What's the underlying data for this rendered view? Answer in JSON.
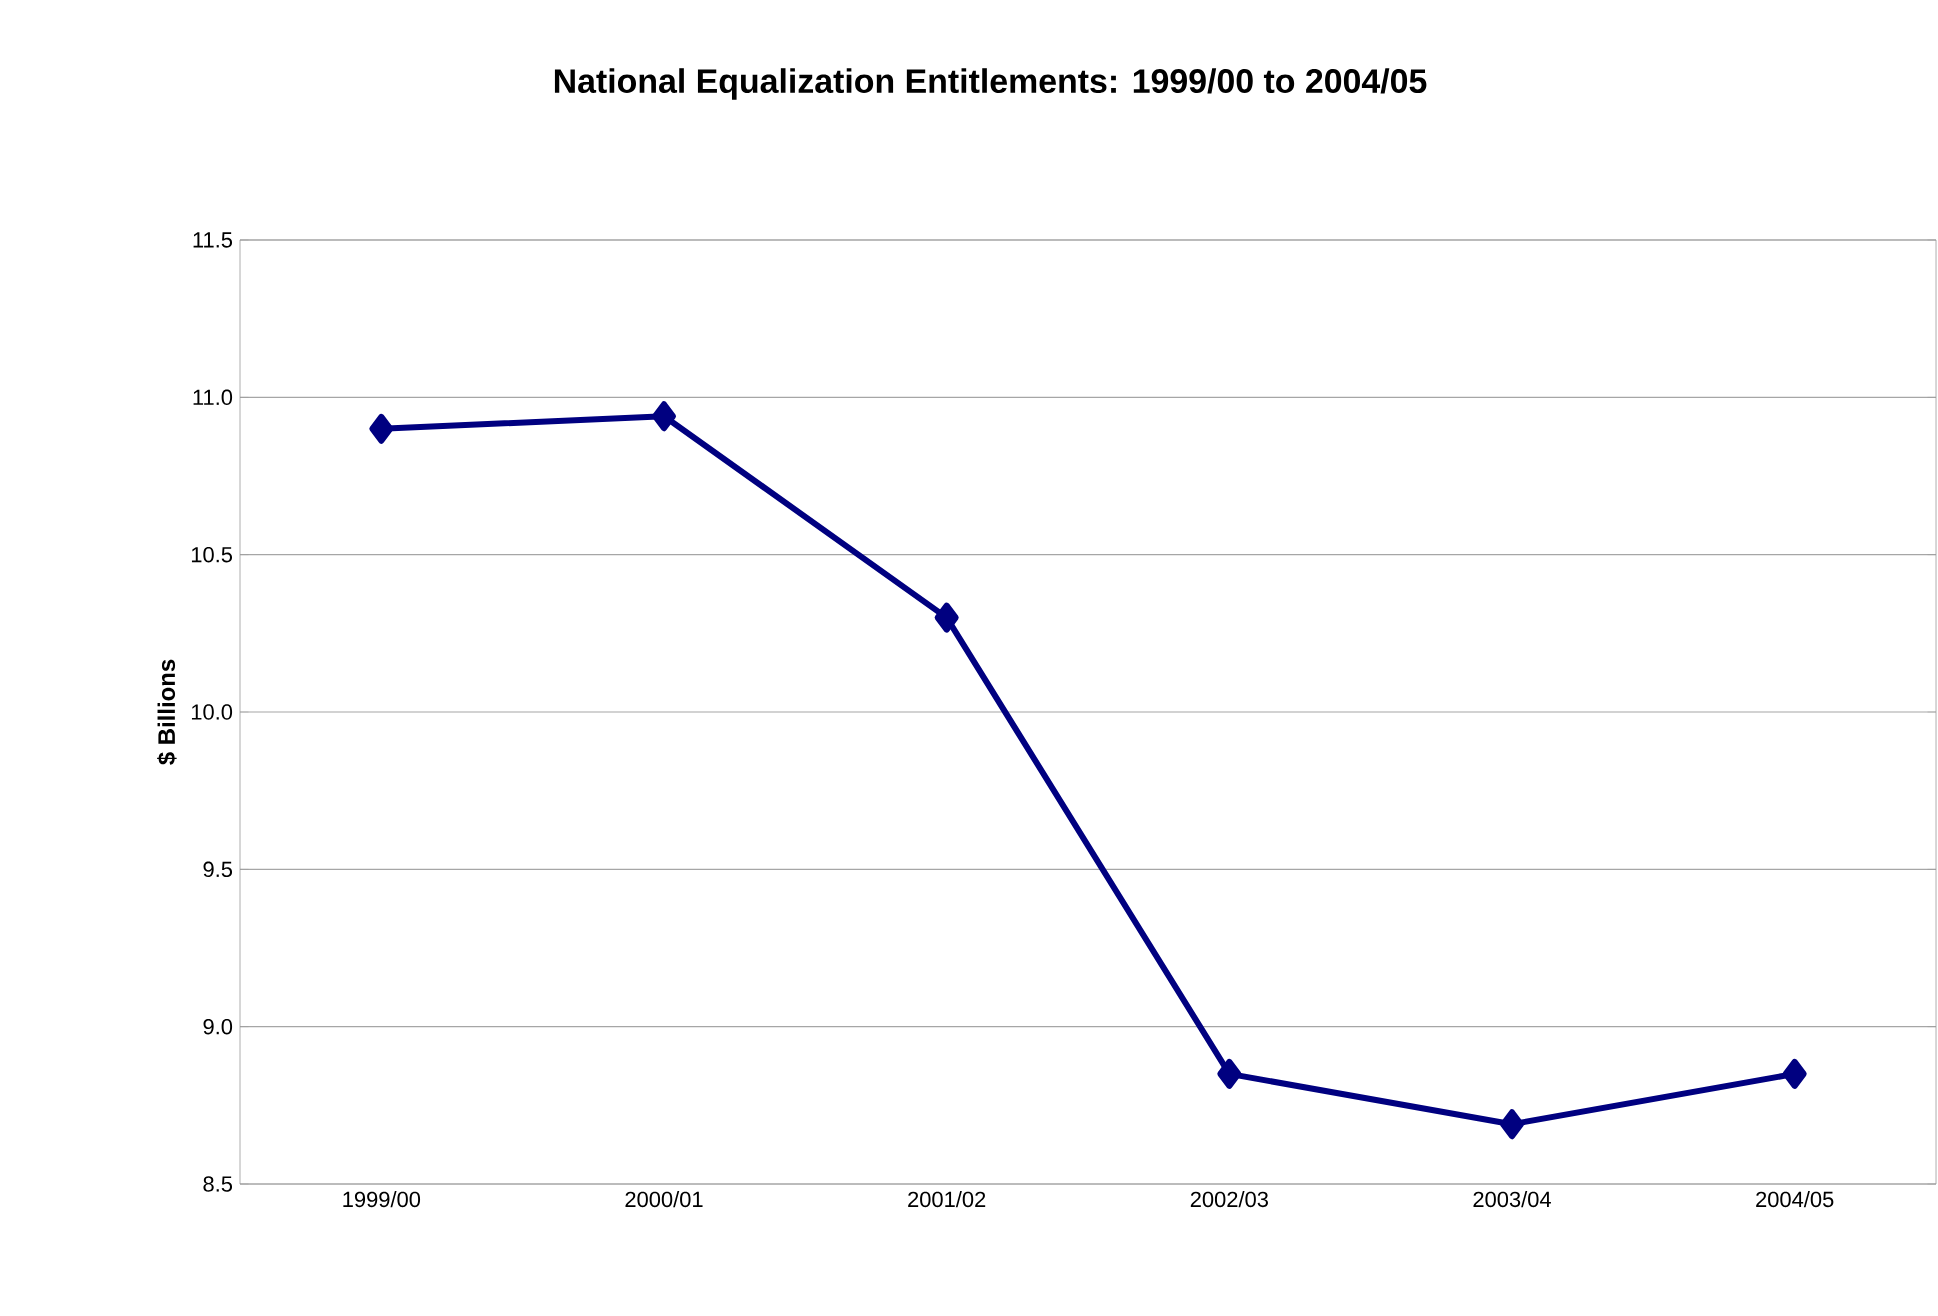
{
  "chart_data": {
    "type": "line",
    "title": "National Equalization Entitlements: 1999/00 to 2004/05",
    "ylabel": "$ Billions",
    "categories": [
      "1999/00",
      "2000/01",
      "2001/02",
      "2002/03",
      "2003/04",
      "2004/05"
    ],
    "series": [
      {
        "color": "#000080",
        "values": [
          10.9,
          10.94,
          10.3,
          8.85,
          8.69,
          8.85
        ]
      }
    ],
    "ylim": [
      8.5,
      11.5
    ],
    "yticks": [
      {
        "value": 8.5,
        "label": "8.5"
      },
      {
        "value": 9.0,
        "label": "9.0"
      },
      {
        "value": 9.5,
        "label": "9.5"
      },
      {
        "value": 10.0,
        "label": "10.0"
      },
      {
        "value": 10.5,
        "label": "10.5"
      },
      {
        "value": 11.0,
        "label": "11.0"
      },
      {
        "value": 11.5,
        "label": "11.5"
      }
    ],
    "grid": "y",
    "marker": "diamond",
    "line_style": "solid"
  }
}
